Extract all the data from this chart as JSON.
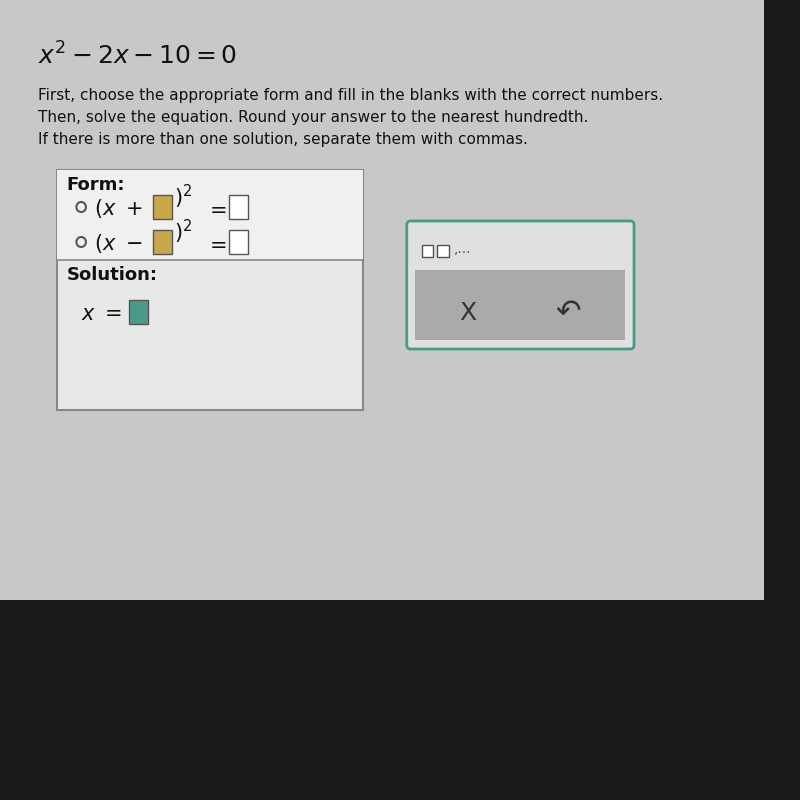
{
  "background_color": "#1a1a1a",
  "content_bg": "#c8c8c8",
  "instruction_lines": [
    "First, choose the appropriate form and fill in the blanks with the correct numbers.",
    "Then, solve the equation. Round your answer to the nearest hundredth.",
    "If there is more than one solution, separate them with commas."
  ],
  "input_box_color_yellow": "#c8a84b",
  "input_box_color_teal": "#4a9a8a",
  "radio_color": "#555555",
  "text_color": "#111111",
  "dots_color": "#555555"
}
